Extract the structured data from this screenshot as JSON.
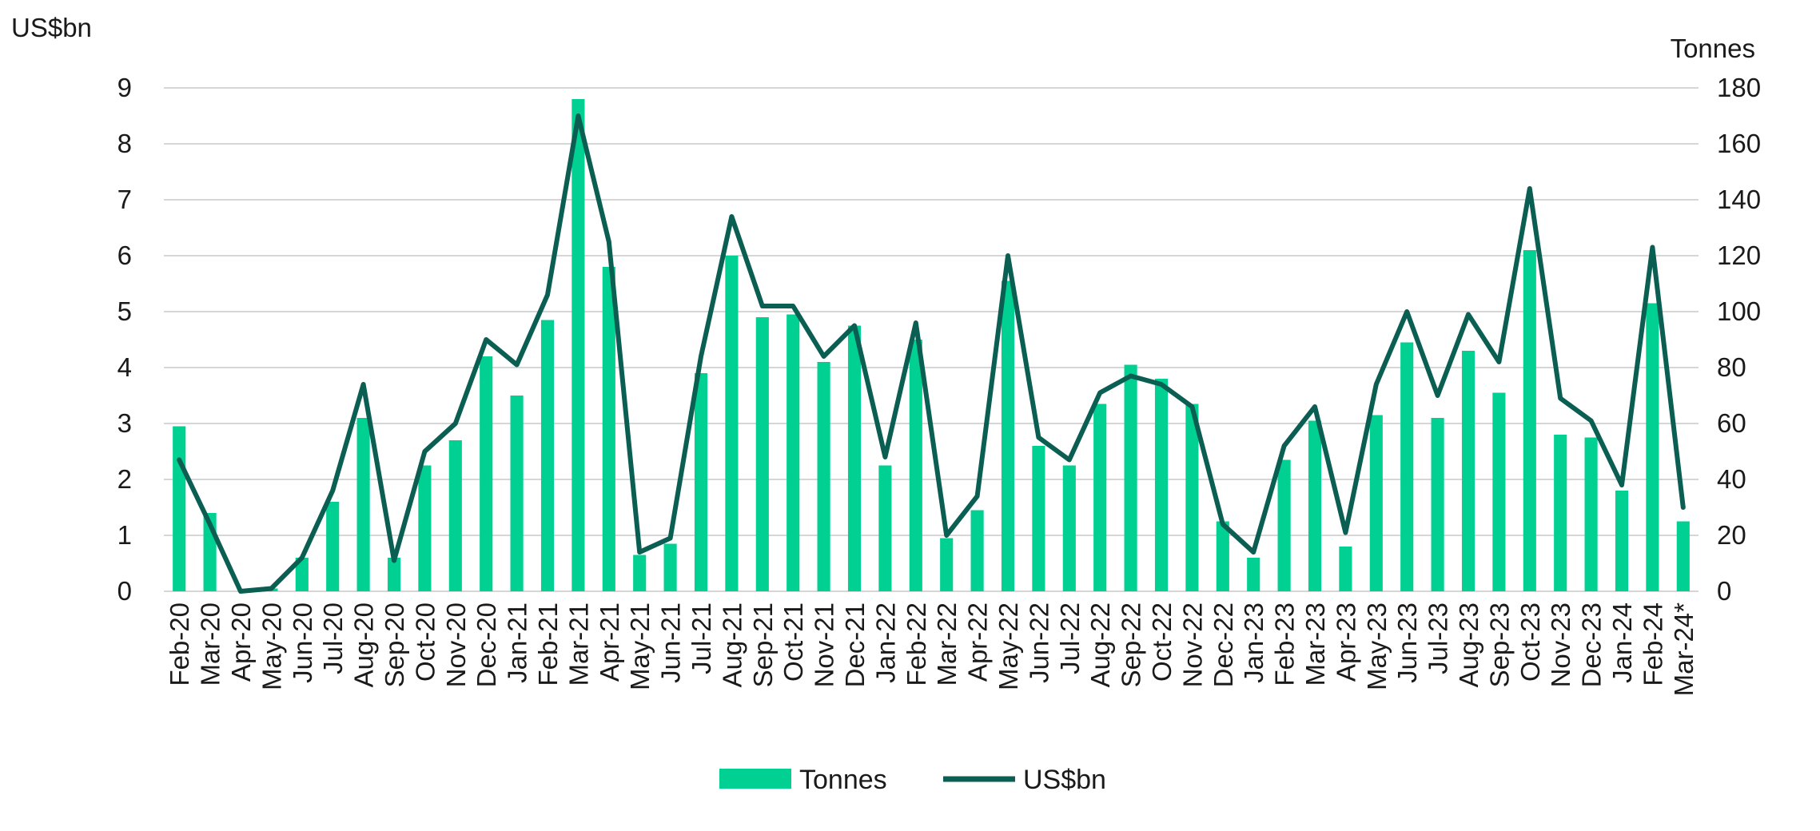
{
  "colors": {
    "bars": "#00D091",
    "line": "#0B5E52",
    "grid": "#C8C8C8"
  },
  "chart_data": {
    "type": "bar",
    "combo": "bar+line",
    "left_axis_title": "US$bn",
    "right_axis_title": "Tonnes",
    "left_ylim": [
      0,
      9
    ],
    "left_ticks": [
      "0",
      "1",
      "2",
      "3",
      "4",
      "5",
      "6",
      "7",
      "8",
      "9"
    ],
    "right_ylim": [
      0,
      180
    ],
    "right_ticks": [
      "0",
      "20",
      "40",
      "60",
      "80",
      "100",
      "120",
      "140",
      "160",
      "180"
    ],
    "grid": true,
    "legend_position": "bottom",
    "categories": [
      "Feb-20",
      "Mar-20",
      "Apr-20",
      "May-20",
      "Jun-20",
      "Jul-20",
      "Aug-20",
      "Sep-20",
      "Oct-20",
      "Nov-20",
      "Dec-20",
      "Jan-21",
      "Feb-21",
      "Mar-21",
      "Apr-21",
      "May-21",
      "Jun-21",
      "Jul-21",
      "Aug-21",
      "Sep-21",
      "Oct-21",
      "Nov-21",
      "Dec-21",
      "Jan-22",
      "Feb-22",
      "Mar-22",
      "Apr-22",
      "May-22",
      "Jun-22",
      "Jul-22",
      "Aug-22",
      "Sep-22",
      "Oct-22",
      "Nov-22",
      "Dec-22",
      "Jan-23",
      "Feb-23",
      "Mar-23",
      "Apr-23",
      "May-23",
      "Jun-23",
      "Jul-23",
      "Aug-23",
      "Sep-23",
      "Oct-23",
      "Nov-23",
      "Dec-23",
      "Jan-24",
      "Feb-24",
      "Mar-24*"
    ],
    "series": [
      {
        "name": "Tonnes",
        "type": "bar",
        "axis": "right",
        "values": [
          59,
          28,
          0,
          1,
          12,
          32,
          62,
          12,
          45,
          54,
          84,
          70,
          97,
          176,
          116,
          13,
          17,
          78,
          120,
          98,
          99,
          82,
          95,
          45,
          90,
          19,
          29,
          111,
          52,
          45,
          67,
          81,
          76,
          67,
          25,
          12,
          47,
          61,
          16,
          63,
          89,
          62,
          86,
          71,
          122,
          56,
          55,
          36,
          103,
          25
        ]
      },
      {
        "name": "US$bn",
        "type": "line",
        "axis": "left",
        "values": [
          2.35,
          1.2,
          0.0,
          0.05,
          0.6,
          1.8,
          3.7,
          0.55,
          2.5,
          3.0,
          4.5,
          4.05,
          5.3,
          8.5,
          6.25,
          0.7,
          0.95,
          4.2,
          6.7,
          5.1,
          5.1,
          4.2,
          4.75,
          2.4,
          4.8,
          1.0,
          1.7,
          6.0,
          2.75,
          2.35,
          3.55,
          3.85,
          3.7,
          3.3,
          1.2,
          0.7,
          2.6,
          3.3,
          1.05,
          3.7,
          5.0,
          3.5,
          4.95,
          4.1,
          7.2,
          3.45,
          3.05,
          1.9,
          6.15,
          1.5
        ]
      }
    ]
  }
}
